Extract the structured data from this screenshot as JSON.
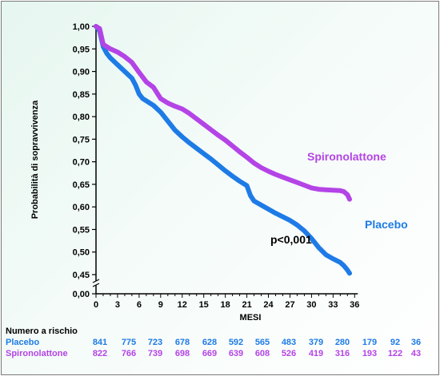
{
  "chart_data": {
    "type": "line",
    "ylabel": "Probabilità di sopravvivenza",
    "xlabel": "MESI",
    "xlim": [
      0,
      36
    ],
    "ylim": [
      0.0,
      1.0
    ],
    "x_ticks": [
      "0",
      "3",
      "6",
      "9",
      "12",
      "15",
      "18",
      "21",
      "24",
      "27",
      "30",
      "33",
      "36"
    ],
    "y_ticks": [
      "0,00",
      "0,45",
      "0,50",
      "0,55",
      "0,60",
      "0,65",
      "0,70",
      "0,75",
      "0,80",
      "0,85",
      "0,90",
      "0,95",
      "1,00"
    ],
    "annotation": "p<0,001",
    "grid": false,
    "series": [
      {
        "name": "Placebo",
        "color": "#1e7be6",
        "x": [
          0,
          0.5,
          1,
          1.5,
          2,
          3,
          4,
          5,
          5.5,
          6,
          6.5,
          7,
          8,
          9,
          10,
          11,
          12,
          13,
          14,
          15,
          16,
          17,
          18,
          19,
          20,
          21,
          21.5,
          22,
          23,
          24,
          25,
          26,
          27,
          28,
          29,
          30,
          31,
          32,
          33,
          34,
          34.5,
          35,
          35.3
        ],
        "y": [
          1.0,
          0.99,
          0.955,
          0.94,
          0.93,
          0.915,
          0.9,
          0.885,
          0.87,
          0.85,
          0.84,
          0.835,
          0.825,
          0.81,
          0.79,
          0.77,
          0.755,
          0.742,
          0.73,
          0.718,
          0.706,
          0.693,
          0.68,
          0.668,
          0.657,
          0.647,
          0.625,
          0.613,
          0.604,
          0.595,
          0.586,
          0.578,
          0.57,
          0.56,
          0.547,
          0.53,
          0.51,
          0.494,
          0.485,
          0.477,
          0.47,
          0.46,
          0.453
        ]
      },
      {
        "name": "Spironolattone",
        "color": "#b444e6",
        "x": [
          0,
          0.5,
          1,
          2,
          3,
          4,
          5,
          6,
          7,
          8,
          9,
          10,
          11,
          12,
          13,
          14,
          15,
          16,
          17,
          18,
          19,
          20,
          21,
          22,
          23,
          24,
          25,
          26,
          27,
          28,
          29,
          30,
          31,
          32,
          33,
          34,
          34.5,
          35,
          35.3
        ],
        "y": [
          1.0,
          0.995,
          0.96,
          0.95,
          0.943,
          0.933,
          0.92,
          0.898,
          0.877,
          0.865,
          0.84,
          0.83,
          0.823,
          0.817,
          0.807,
          0.795,
          0.783,
          0.771,
          0.759,
          0.748,
          0.735,
          0.722,
          0.71,
          0.697,
          0.687,
          0.679,
          0.672,
          0.666,
          0.66,
          0.654,
          0.648,
          0.642,
          0.639,
          0.638,
          0.637,
          0.636,
          0.634,
          0.627,
          0.617
        ]
      }
    ]
  },
  "risk_table": {
    "title": "Numero a rischio",
    "rows": [
      {
        "label": "Placebo",
        "color": "#1e7be6",
        "values": [
          "841",
          "775",
          "723",
          "678",
          "628",
          "592",
          "565",
          "483",
          "379",
          "280",
          "179",
          "92",
          "36"
        ]
      },
      {
        "label": "Spironolattone",
        "color": "#b444e6",
        "values": [
          "822",
          "766",
          "739",
          "698",
          "669",
          "639",
          "608",
          "526",
          "419",
          "316",
          "193",
          "122",
          "43"
        ]
      }
    ]
  }
}
